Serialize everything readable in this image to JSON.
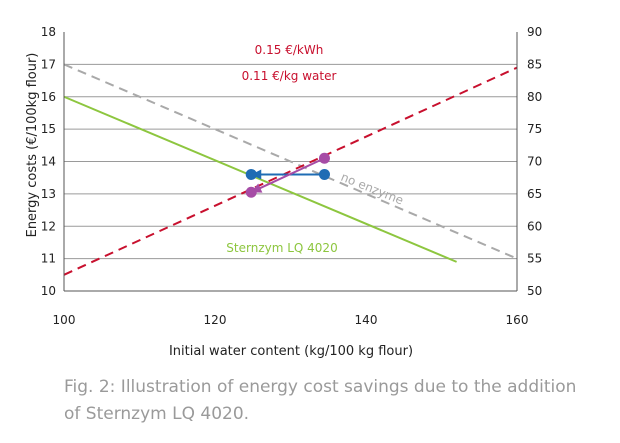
{
  "chart_data": {
    "type": "line",
    "xlabel": "Initial water content (kg/100 kg flour)",
    "ylabel": "Energy costs (€/100kg flour)",
    "x_ticks": [
      100,
      120,
      140,
      160
    ],
    "xlim": [
      100,
      160
    ],
    "ylim": [
      10,
      18
    ],
    "y_ticks": [
      10,
      11,
      12,
      13,
      14,
      15,
      16,
      17,
      18
    ],
    "y2lim": [
      50,
      90
    ],
    "y2_ticks": [
      50,
      55,
      60,
      65,
      70,
      75,
      80,
      85,
      90
    ],
    "grid": "horizontal",
    "series": [
      {
        "name": "no enzyme",
        "axis": "left",
        "style": "dashed",
        "color": "#a9a9a9",
        "x": [
          100,
          160
        ],
        "y": [
          17.0,
          11.0
        ]
      },
      {
        "name": "Sternzym LQ 4020",
        "axis": "left",
        "style": "solid",
        "color": "#8dc63f",
        "x": [
          100,
          152
        ],
        "y": [
          16.0,
          10.9
        ]
      },
      {
        "name": "",
        "axis": "right",
        "style": "dashed",
        "color": "#c8102e",
        "x": [
          100,
          160
        ],
        "y": [
          52.5,
          84.5
        ]
      }
    ],
    "annotations": {
      "energy_price": "0.15 €/kWh",
      "water_price": "0.11 €/kg water",
      "red_color": "#c8102e",
      "green_color": "#8dc63f",
      "gray_color": "#a9a9a9"
    },
    "arrows": [
      {
        "color": "#1f6cb4",
        "from": [
          134.5,
          13.6
        ],
        "to": [
          124.8,
          13.6
        ]
      },
      {
        "color": "#a64ca6",
        "from": [
          134.5,
          14.1
        ],
        "to": [
          124.8,
          13.05
        ]
      }
    ]
  },
  "caption": "Fig. 2: Illustration of energy cost savings due to the addition of Sternzym LQ 4020."
}
